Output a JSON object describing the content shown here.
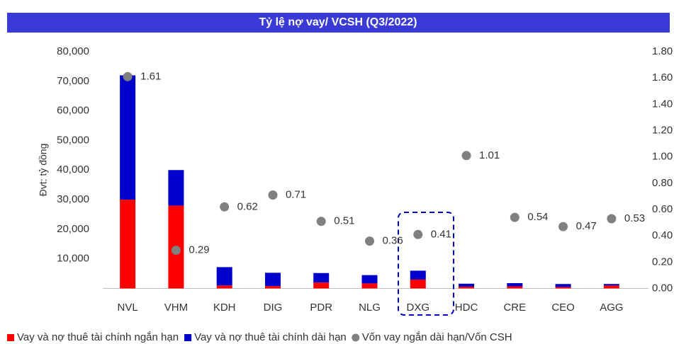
{
  "chart_data": {
    "type": "bar",
    "stacked": true,
    "title": "Tỷ lệ nợ vay/ VCSH (Q3/2022)",
    "ylabel": "Đvt: tỷ đồng",
    "categories": [
      "NVL",
      "VHM",
      "KDH",
      "DIG",
      "PDR",
      "NLG",
      "DXG",
      "HDC",
      "CRE",
      "CEO",
      "AGG"
    ],
    "series": [
      {
        "name": "Vay và nợ thuê tài chính ngắn hạn",
        "color": "#ff0000",
        "values": [
          30000,
          28000,
          1000,
          800,
          2000,
          1700,
          3000,
          600,
          700,
          500,
          1000
        ]
      },
      {
        "name": "Vay và nợ thuê tài chính dài hạn",
        "color": "#0000cc",
        "values": [
          42000,
          12000,
          6200,
          4500,
          3200,
          2800,
          3000,
          1000,
          1100,
          1000,
          500
        ]
      },
      {
        "name": "Vốn vay ngắn dài hạn/Vốn CSH",
        "color": "#808080",
        "type": "scatter",
        "axis": "y2",
        "values": [
          1.61,
          0.29,
          0.62,
          0.71,
          0.51,
          0.36,
          0.41,
          1.01,
          0.54,
          0.47,
          0.53
        ]
      }
    ],
    "ylim": [
      0,
      80000
    ],
    "yticks": [
      {
        "value": 10000,
        "label": "10,000"
      },
      {
        "value": 20000,
        "label": "20,000"
      },
      {
        "value": 30000,
        "label": "30,000"
      },
      {
        "value": 40000,
        "label": "40,000"
      },
      {
        "value": 50000,
        "label": "50,000"
      },
      {
        "value": 60000,
        "label": "60,000"
      },
      {
        "value": 70000,
        "label": "70,000"
      },
      {
        "value": 80000,
        "label": "80,000"
      }
    ],
    "y2lim": [
      0,
      1.8
    ],
    "y2ticks": [
      {
        "value": 0,
        "label": "0.00"
      },
      {
        "value": 0.2,
        "label": "0.20"
      },
      {
        "value": 0.4,
        "label": "0.40"
      },
      {
        "value": 0.6,
        "label": "0.60"
      },
      {
        "value": 0.8,
        "label": "0.80"
      },
      {
        "value": 1.0,
        "label": "1.00"
      },
      {
        "value": 1.2,
        "label": "1.20"
      },
      {
        "value": 1.4,
        "label": "1.40"
      },
      {
        "value": 1.6,
        "label": "1.60"
      },
      {
        "value": 1.8,
        "label": "1.80"
      }
    ],
    "legend": "bottom"
  }
}
